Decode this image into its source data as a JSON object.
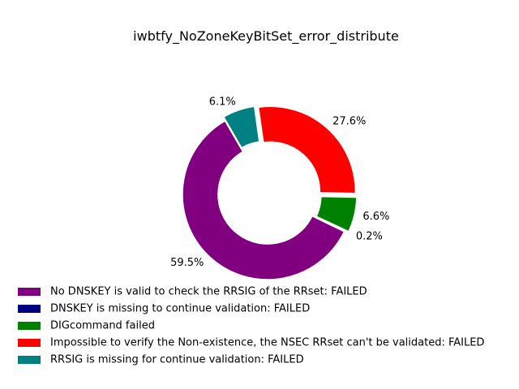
{
  "chart_data": {
    "type": "pie",
    "style": "donut",
    "title": "iwbtfy_NoZoneKeyBitSet_error_distribute",
    "legend_position": "bottom-left",
    "slices": [
      {
        "label": "No DNSKEY is valid to check the RRSIG of the RRset: FAILED",
        "percent": 59.5,
        "pct_label": "59.5%",
        "color": "#800080",
        "exploded": false
      },
      {
        "label": "DNSKEY is missing to continue validation: FAILED",
        "percent": 0.2,
        "pct_label": "0.2%",
        "color": "#000080",
        "exploded": true
      },
      {
        "label": "DIGcommand failed",
        "percent": 6.6,
        "pct_label": "6.6%",
        "color": "#008000",
        "exploded": true
      },
      {
        "label": "Impossible to verify the Non-existence, the NSEC RRset can't be validated: FAILED",
        "percent": 27.6,
        "pct_label": "27.6%",
        "color": "#ff0000",
        "exploded": true
      },
      {
        "label": "RRSIG is missing for continue validation: FAILED",
        "percent": 6.1,
        "pct_label": "6.1%",
        "color": "#008080",
        "exploded": true
      }
    ]
  }
}
